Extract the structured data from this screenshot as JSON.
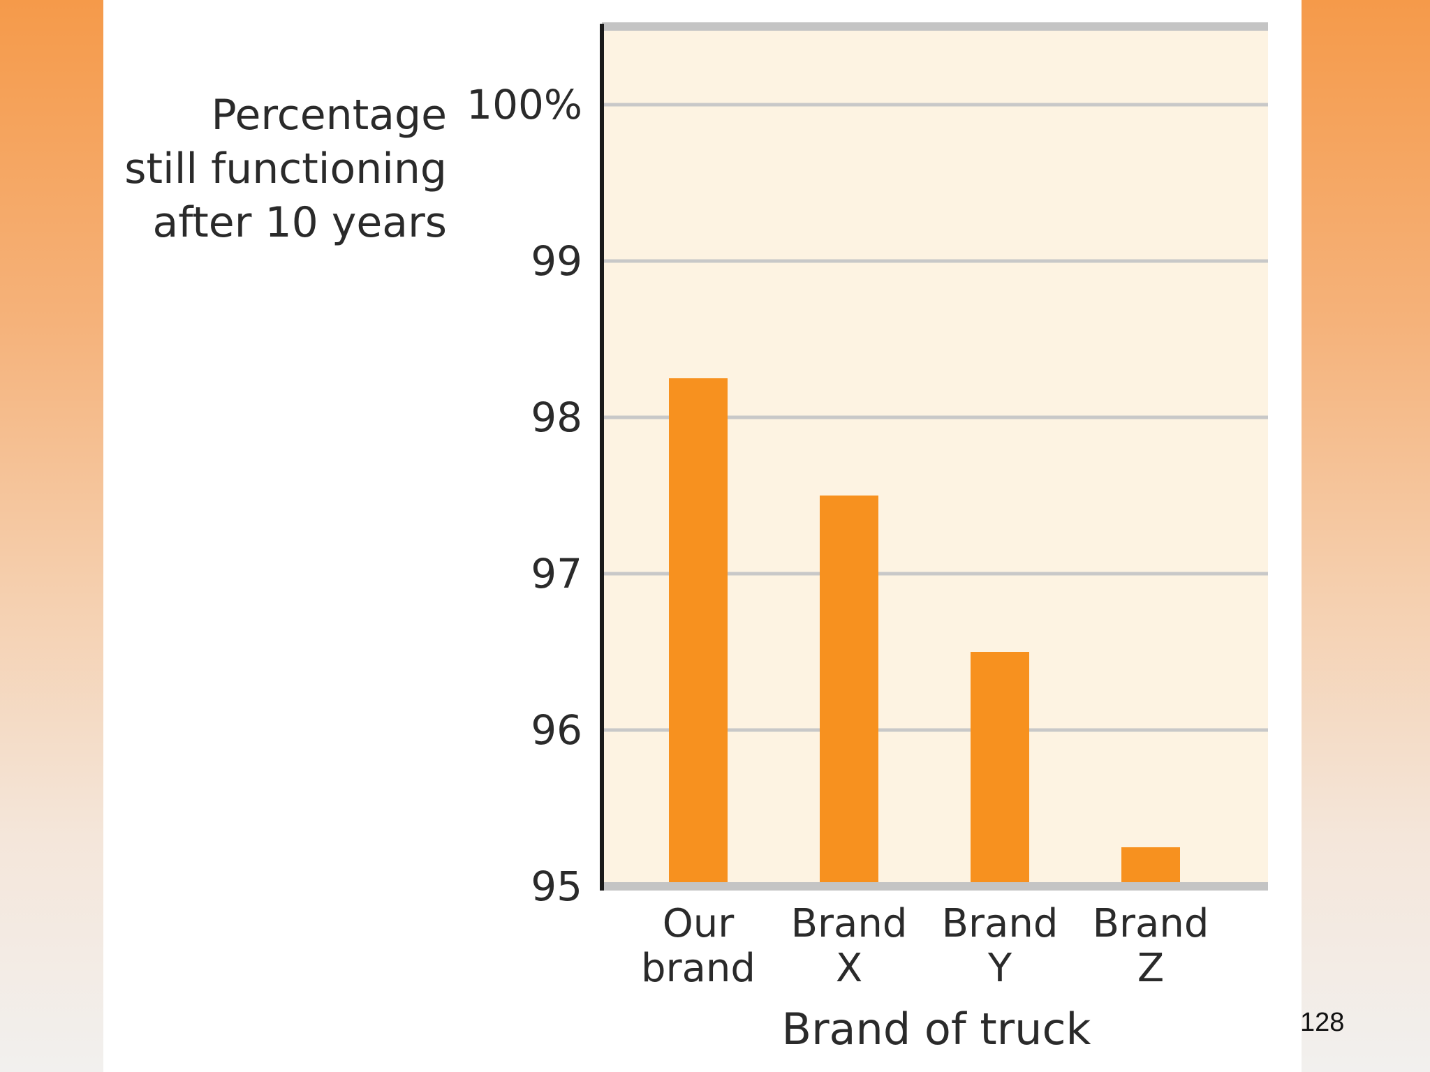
{
  "colors": {
    "plot_background": "#fdf3e2",
    "bar": "#f7911f",
    "gridline": "#c8c8c8",
    "axis": "#1a1a1a",
    "frame": "#c4c4c4"
  },
  "page_number": "128",
  "chart_data": {
    "type": "bar",
    "title": "",
    "ylabel_lines": [
      "Percentage",
      "still functioning",
      "after 10 years"
    ],
    "xlabel": "Brand of truck",
    "categories": [
      {
        "line1": "Our",
        "line2": "brand"
      },
      {
        "line1": "Brand",
        "line2": "X"
      },
      {
        "line1": "Brand",
        "line2": "Y"
      },
      {
        "line1": "Brand",
        "line2": "Z"
      }
    ],
    "values": [
      98.25,
      97.5,
      96.5,
      95.25
    ],
    "ylim": [
      95,
      100.5
    ],
    "yticks": [
      {
        "value": 95,
        "label": "95"
      },
      {
        "value": 96,
        "label": "96"
      },
      {
        "value": 97,
        "label": "97"
      },
      {
        "value": 98,
        "label": "98"
      },
      {
        "value": 99,
        "label": "99"
      },
      {
        "value": 100,
        "label": "100%"
      }
    ],
    "grid": true
  }
}
